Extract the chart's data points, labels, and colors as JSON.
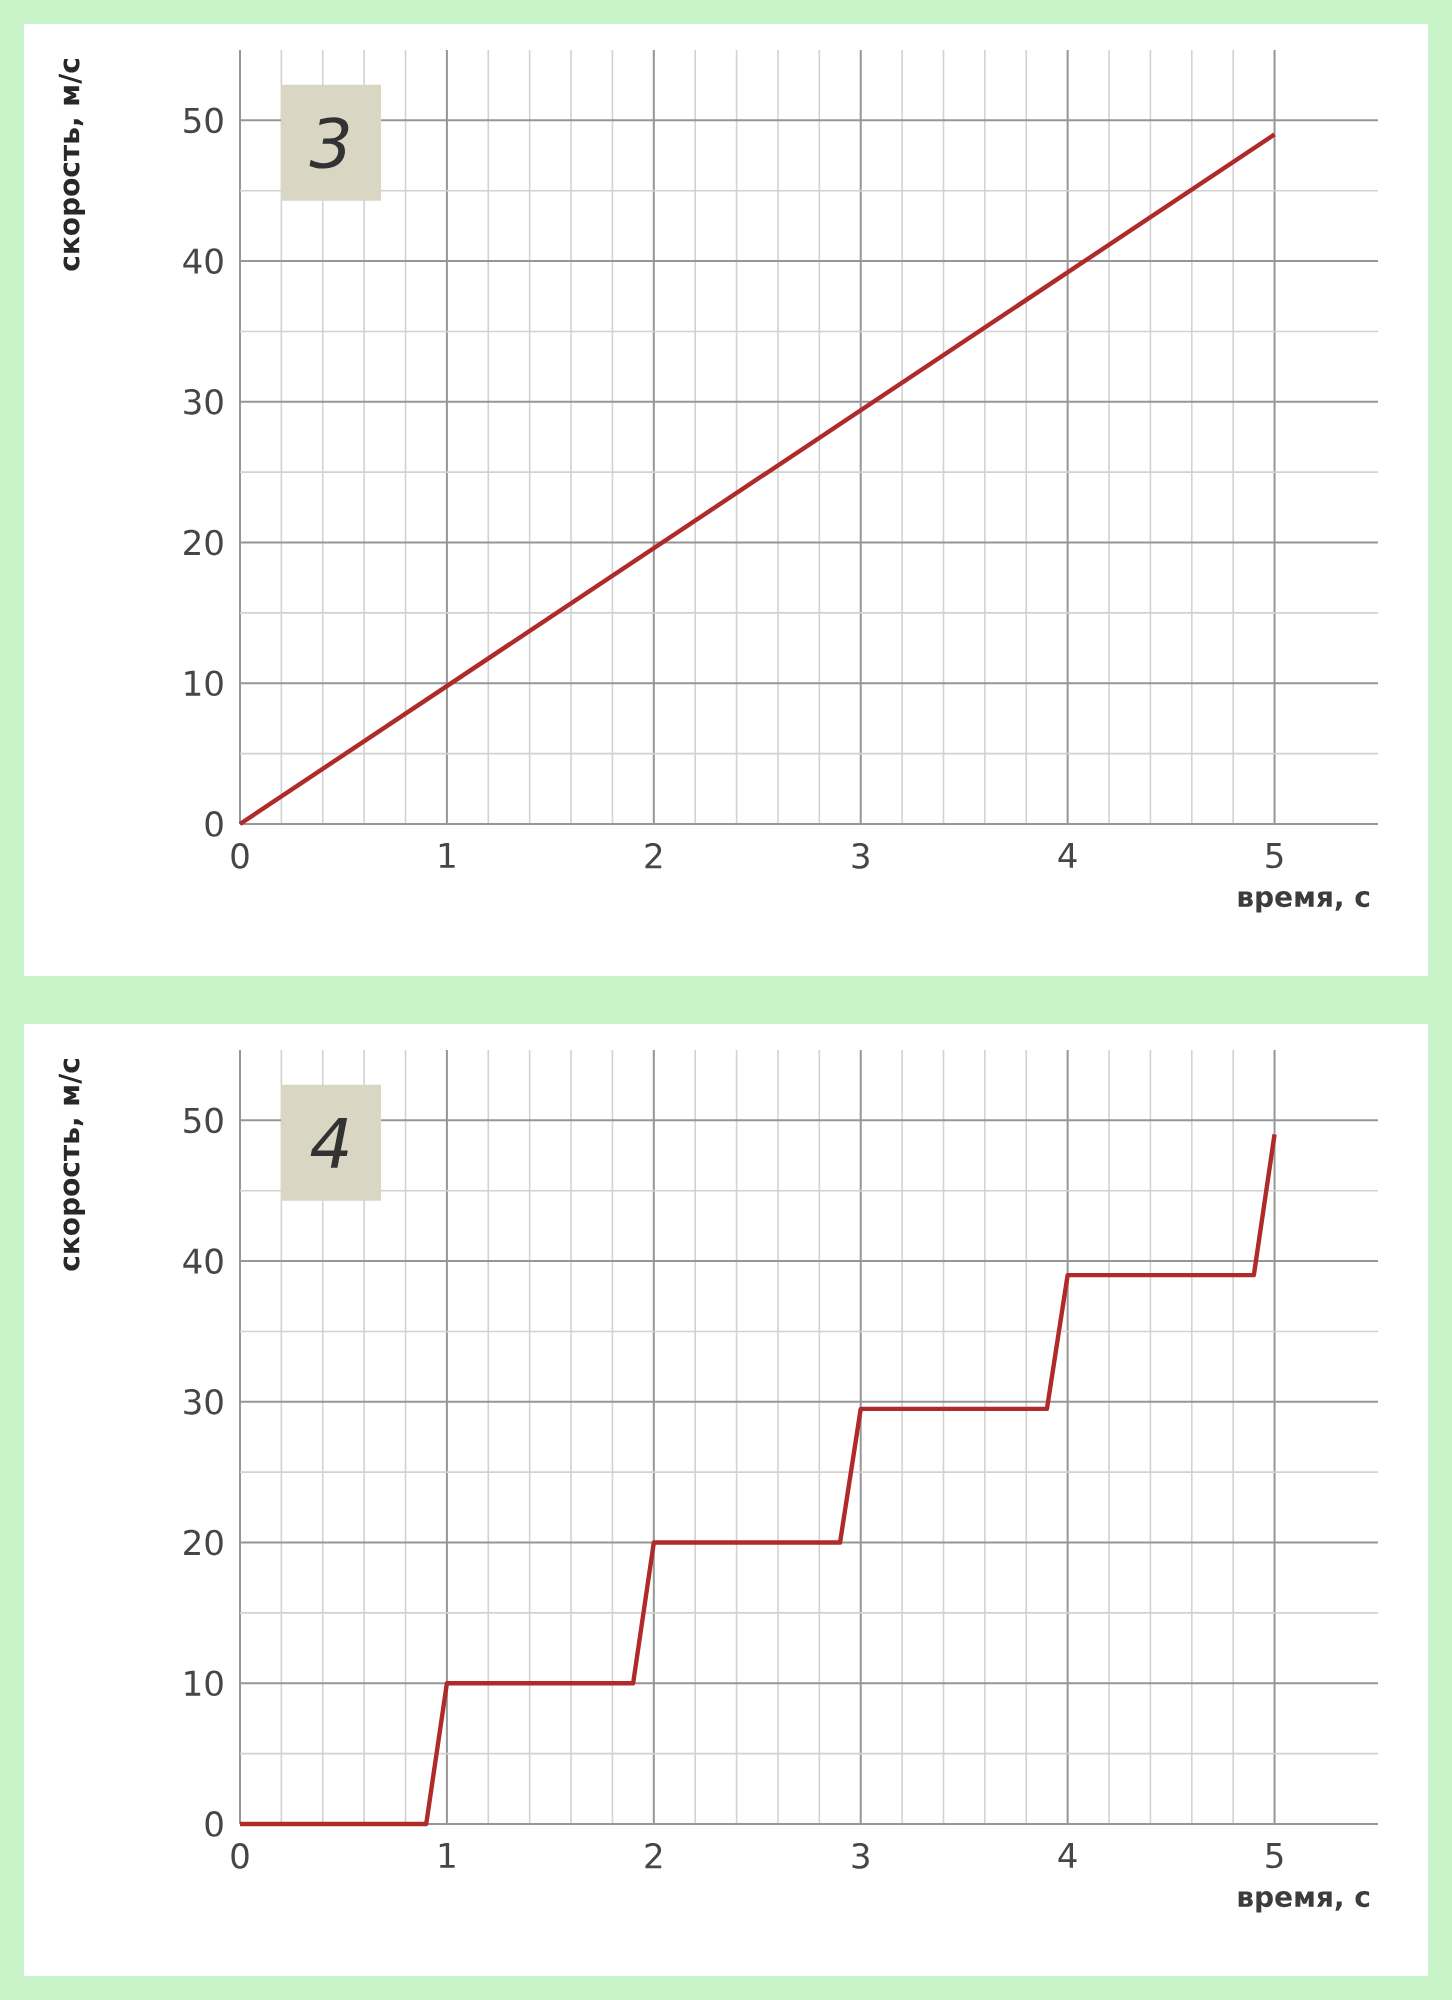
{
  "chart_data": [
    {
      "type": "line",
      "annotations": [
        "3"
      ],
      "xlabel": "время, с",
      "ylabel": "скорость, м/с",
      "x": [
        0,
        5
      ],
      "series": [
        {
          "color": "#b02a2a",
          "values": [
            0,
            49
          ]
        }
      ],
      "xlim": [
        0,
        5.5
      ],
      "ylim": [
        0,
        55
      ],
      "xticks": [
        0,
        1,
        2,
        3,
        4,
        5
      ],
      "yticks": [
        0,
        10,
        20,
        30,
        40,
        50
      ],
      "grid": true
    },
    {
      "type": "line",
      "annotations": [
        "4"
      ],
      "xlabel": "время, с",
      "ylabel": "скорость, м/с",
      "x": [
        0,
        0.9,
        1,
        1.9,
        2,
        2.9,
        3,
        3.9,
        4,
        4.9,
        5
      ],
      "series": [
        {
          "color": "#b02a2a",
          "values": [
            0,
            0,
            10,
            10,
            20,
            20,
            29.5,
            29.5,
            39,
            39,
            49
          ]
        }
      ],
      "xlim": [
        0,
        5.5
      ],
      "ylim": [
        0,
        55
      ],
      "xticks": [
        0,
        1,
        2,
        3,
        4,
        5
      ],
      "yticks": [
        0,
        10,
        20,
        30,
        40,
        50
      ],
      "grid": true
    }
  ]
}
